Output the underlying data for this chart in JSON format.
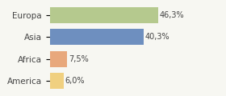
{
  "categories": [
    "Europa",
    "Asia",
    "Africa",
    "America"
  ],
  "values": [
    46.3,
    40.3,
    7.5,
    6.0
  ],
  "labels": [
    "46,3%",
    "40,3%",
    "7,5%",
    "6,0%"
  ],
  "bar_colors": [
    "#b5c98e",
    "#6e8fbf",
    "#e8a87c",
    "#f0d080"
  ],
  "background_color": "#f7f7f2",
  "xlim": [
    0,
    58
  ],
  "bar_height": 0.72,
  "label_fontsize": 7,
  "tick_fontsize": 7.5,
  "grid_color": "#ffffff",
  "grid_linewidth": 1.2
}
